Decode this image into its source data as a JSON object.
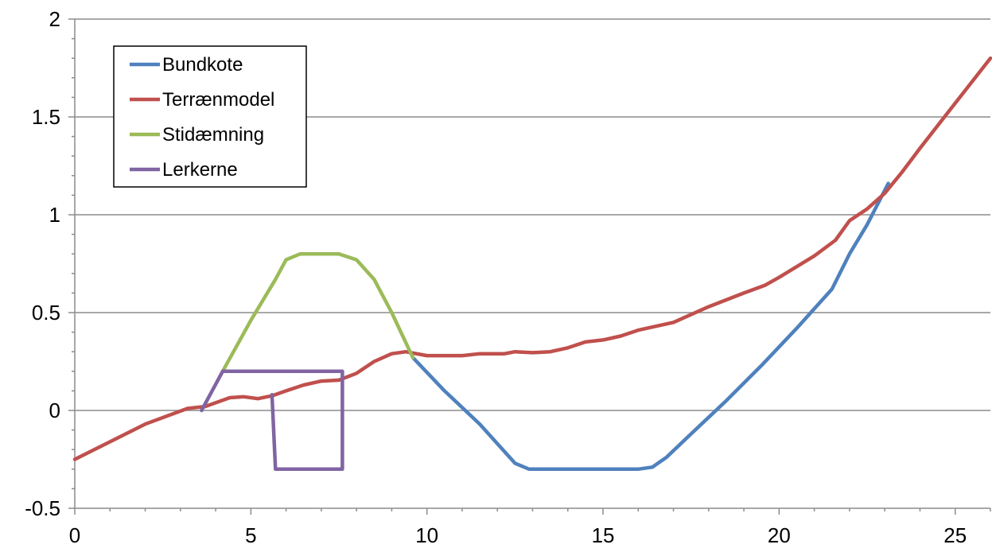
{
  "chart_data": {
    "type": "line",
    "xlim": [
      0,
      26
    ],
    "ylim": [
      -0.5,
      2
    ],
    "x_ticks": [
      0,
      5,
      10,
      15,
      20,
      25
    ],
    "y_ticks": [
      -0.5,
      0,
      0.5,
      1,
      1.5,
      2
    ],
    "x_tick_labels": [
      "0",
      "5",
      "10",
      "15",
      "20",
      "25"
    ],
    "y_tick_labels": [
      "-0.5",
      "0",
      "0.5",
      "1",
      "1.5",
      "2"
    ],
    "grid": "horizontal",
    "legend_position": "top-left",
    "series": [
      {
        "name": "Bundkote",
        "color": "#4f81bd",
        "points": [
          [
            9.6,
            0.27
          ],
          [
            10.5,
            0.1
          ],
          [
            11.5,
            -0.07
          ],
          [
            12.5,
            -0.27
          ],
          [
            12.9,
            -0.3
          ],
          [
            16.0,
            -0.3
          ],
          [
            16.4,
            -0.29
          ],
          [
            16.8,
            -0.24
          ],
          [
            17.5,
            -0.12
          ],
          [
            18.5,
            0.05
          ],
          [
            19.5,
            0.23
          ],
          [
            20.5,
            0.42
          ],
          [
            21.5,
            0.62
          ],
          [
            22.0,
            0.8
          ],
          [
            22.5,
            0.95
          ],
          [
            23.1,
            1.16
          ]
        ]
      },
      {
        "name": "Terrænmodel",
        "color": "#c0504d",
        "points": [
          [
            0,
            -0.25
          ],
          [
            1,
            -0.16
          ],
          [
            2,
            -0.07
          ],
          [
            3.2,
            0.01
          ],
          [
            3.7,
            0.02
          ],
          [
            4.4,
            0.065
          ],
          [
            4.8,
            0.07
          ],
          [
            5.2,
            0.06
          ],
          [
            5.6,
            0.075
          ],
          [
            6.0,
            0.1
          ],
          [
            6.5,
            0.13
          ],
          [
            7.0,
            0.15
          ],
          [
            7.5,
            0.155
          ],
          [
            8.0,
            0.19
          ],
          [
            8.5,
            0.25
          ],
          [
            9.0,
            0.29
          ],
          [
            9.4,
            0.3
          ],
          [
            10,
            0.28
          ],
          [
            11,
            0.28
          ],
          [
            11.5,
            0.29
          ],
          [
            12.2,
            0.29
          ],
          [
            12.5,
            0.3
          ],
          [
            13,
            0.295
          ],
          [
            13.5,
            0.3
          ],
          [
            14,
            0.32
          ],
          [
            14.5,
            0.35
          ],
          [
            15,
            0.36
          ],
          [
            15.5,
            0.38
          ],
          [
            16,
            0.41
          ],
          [
            17,
            0.45
          ],
          [
            18,
            0.53
          ],
          [
            19,
            0.6
          ],
          [
            19.6,
            0.64
          ],
          [
            20.0,
            0.68
          ],
          [
            21.0,
            0.79
          ],
          [
            21.6,
            0.87
          ],
          [
            22.0,
            0.97
          ],
          [
            22.5,
            1.03
          ],
          [
            23.0,
            1.11
          ],
          [
            23.5,
            1.22
          ],
          [
            24.0,
            1.34
          ],
          [
            25,
            1.57
          ],
          [
            26,
            1.8
          ]
        ]
      },
      {
        "name": "Stidæmning",
        "color": "#9bbb59",
        "points": [
          [
            4.2,
            0.2
          ],
          [
            5.0,
            0.46
          ],
          [
            5.7,
            0.67
          ],
          [
            6.0,
            0.77
          ],
          [
            6.4,
            0.8
          ],
          [
            7.5,
            0.8
          ],
          [
            8.0,
            0.77
          ],
          [
            8.5,
            0.67
          ],
          [
            9.0,
            0.5
          ],
          [
            9.6,
            0.27
          ]
        ]
      },
      {
        "name": "Lerkerne",
        "color": "#8064a2",
        "points": [
          [
            3.6,
            0.0
          ],
          [
            4.2,
            0.2
          ],
          [
            7.6,
            0.2
          ],
          [
            7.6,
            -0.3
          ],
          [
            5.7,
            -0.3
          ],
          [
            5.6,
            0.08
          ]
        ]
      }
    ]
  }
}
